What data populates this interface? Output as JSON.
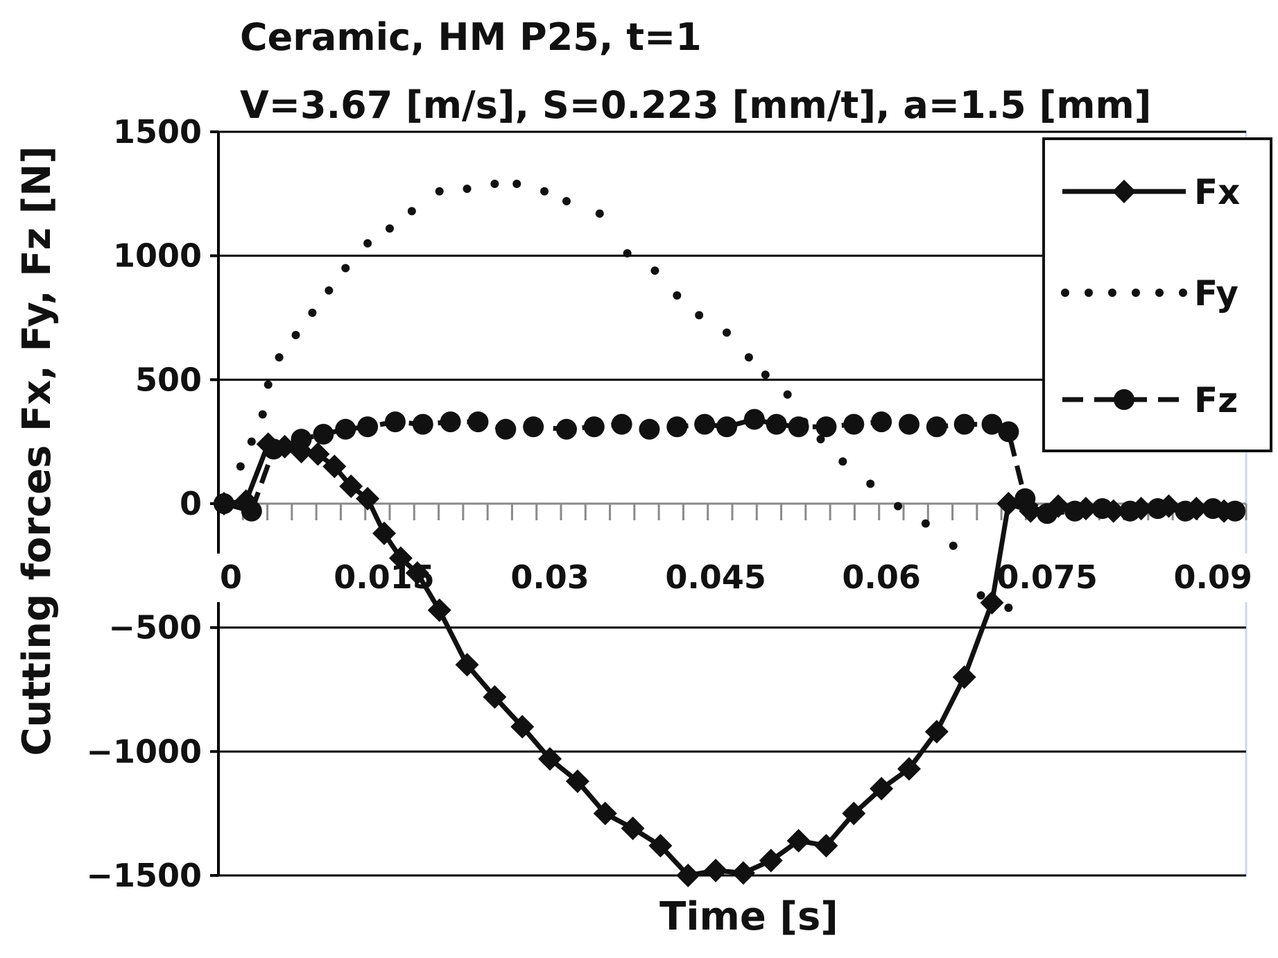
{
  "chart_data": {
    "type": "line",
    "title": "Ceramic, HM P25, t=1",
    "subtitle": "V=3.67 [m/s], S=0.223 [mm/t], a=1.5 [mm]",
    "xlabel": "Time [s]",
    "ylabel": "Cutting forces  Fx, Fy, Fz [N]",
    "xlim": [
      0,
      0.093
    ],
    "ylim": [
      -1500,
      1500
    ],
    "xticks": [
      0,
      0.015,
      0.03,
      0.045,
      0.06,
      0.075,
      0.09
    ],
    "xtick_labels": [
      "0",
      "0.015",
      "0.03",
      "0.045",
      "0.06",
      "0.075",
      "0.09"
    ],
    "yticks": [
      -1500,
      -1000,
      -500,
      0,
      500,
      1000,
      1500
    ],
    "ytick_labels": [
      "−1500",
      "−1000",
      "−500",
      "0",
      "500",
      "1000",
      "1500"
    ],
    "grid": "horizontal",
    "legend_position": "top-right",
    "series": [
      {
        "name": "Fx",
        "line": "solid",
        "marker": "diamond",
        "color": "#111111",
        "x": [
          0.0005,
          0.0025,
          0.0045,
          0.006,
          0.0075,
          0.009,
          0.0105,
          0.012,
          0.0135,
          0.015,
          0.0165,
          0.018,
          0.02,
          0.0225,
          0.025,
          0.0275,
          0.03,
          0.0325,
          0.035,
          0.0375,
          0.04,
          0.0425,
          0.045,
          0.0475,
          0.05,
          0.0525,
          0.055,
          0.0575,
          0.06,
          0.0625,
          0.065,
          0.0675,
          0.07,
          0.0715,
          0.0735,
          0.076,
          0.0785,
          0.081,
          0.0835,
          0.086,
          0.0885,
          0.091
        ],
        "y": [
          0,
          10,
          240,
          230,
          210,
          200,
          150,
          70,
          20,
          -120,
          -220,
          -280,
          -430,
          -650,
          -780,
          -900,
          -1030,
          -1120,
          -1250,
          -1310,
          -1380,
          -1500,
          -1480,
          -1490,
          -1440,
          -1360,
          -1380,
          -1250,
          -1150,
          -1070,
          -920,
          -700,
          -400,
          0,
          -30,
          -10,
          -20,
          -30,
          -20,
          -10,
          -20,
          -30
        ]
      },
      {
        "name": "Fy",
        "line": "dotted",
        "marker": "none",
        "color": "#111111",
        "x": [
          0.002,
          0.003,
          0.004,
          0.0045,
          0.0055,
          0.007,
          0.0085,
          0.01,
          0.0115,
          0.0135,
          0.0155,
          0.0175,
          0.02,
          0.0225,
          0.025,
          0.027,
          0.0295,
          0.0315,
          0.0345,
          0.037,
          0.0395,
          0.0415,
          0.0435,
          0.046,
          0.048,
          0.0495,
          0.0515,
          0.053,
          0.0545,
          0.0565,
          0.059,
          0.0615,
          0.064,
          0.0665,
          0.069,
          0.0715
        ],
        "y": [
          150,
          250,
          360,
          480,
          590,
          680,
          770,
          860,
          950,
          1050,
          1110,
          1180,
          1260,
          1270,
          1290,
          1290,
          1260,
          1220,
          1170,
          1010,
          940,
          840,
          760,
          690,
          590,
          520,
          440,
          330,
          260,
          170,
          80,
          -10,
          -80,
          -170,
          -370,
          -420
        ]
      },
      {
        "name": "Fz",
        "line": "dashed",
        "marker": "circle",
        "color": "#111111",
        "x": [
          0.0005,
          0.003,
          0.005,
          0.0075,
          0.0095,
          0.0115,
          0.0135,
          0.016,
          0.0185,
          0.021,
          0.0235,
          0.026,
          0.0285,
          0.0315,
          0.034,
          0.0365,
          0.039,
          0.0415,
          0.044,
          0.046,
          0.0485,
          0.0505,
          0.0525,
          0.055,
          0.0575,
          0.06,
          0.0625,
          0.065,
          0.0675,
          0.07,
          0.0715,
          0.073,
          0.075,
          0.0775,
          0.08,
          0.0825,
          0.085,
          0.0875,
          0.09,
          0.092
        ],
        "y": [
          0,
          -30,
          220,
          260,
          280,
          300,
          310,
          330,
          320,
          330,
          330,
          300,
          310,
          300,
          310,
          320,
          300,
          310,
          320,
          310,
          340,
          320,
          310,
          310,
          320,
          330,
          320,
          310,
          320,
          320,
          290,
          20,
          -40,
          -30,
          -20,
          -30,
          -20,
          -30,
          -20,
          -30
        ]
      }
    ]
  }
}
